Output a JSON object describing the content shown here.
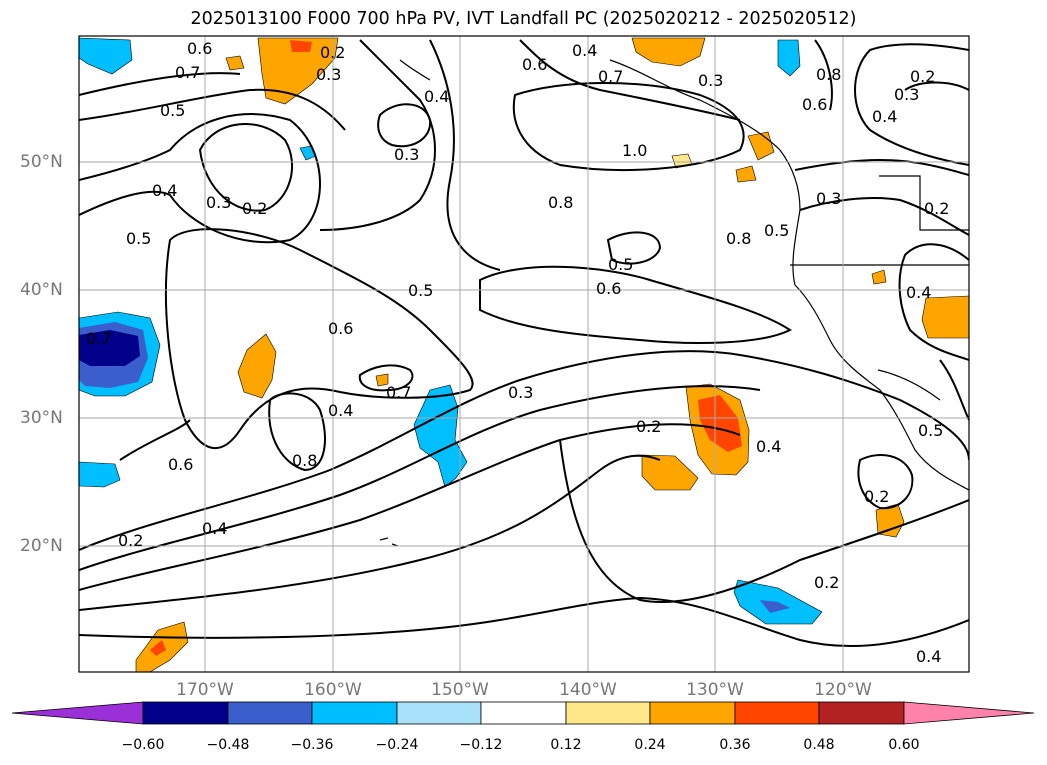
{
  "title": "2025013100 F000 700 hPa PV, IVT Landfall PC (2025020212 - 2025020512)",
  "lat_labels": [
    "50°N",
    "40°N",
    "30°N",
    "20°N"
  ],
  "lon_labels": [
    "170°W",
    "160°W",
    "150°W",
    "140°W",
    "130°W",
    "120°W"
  ],
  "contour_labels": [
    "0.6",
    "0.7",
    "0.2",
    "0.3",
    "0.4",
    "0.6",
    "0.4",
    "0.7",
    "0.3",
    "0.2",
    "0.8",
    "0.3",
    "0.5",
    "0.3",
    "1.0",
    "0.6",
    "0.4",
    "0.4",
    "0.3",
    "0.2",
    "0.5",
    "0.8",
    "0.5",
    "0.8",
    "0.3",
    "0.2",
    "0.5",
    "0.5",
    "0.6",
    "0.4",
    "0.6",
    "0.7",
    "0.7",
    "0.3",
    "0.4",
    "0.8",
    "0.2",
    "0.4",
    "0.6",
    "0.4",
    "0.2",
    "0.2",
    "0.2",
    "0.4",
    "0.5"
  ],
  "colorbar": {
    "tick_labels": [
      "−0.60",
      "−0.48",
      "−0.36",
      "−0.24",
      "−0.12",
      "0.12",
      "0.24",
      "0.36",
      "0.48",
      "0.60"
    ],
    "colors": [
      "#9b30d9",
      "#00008b",
      "#3a5fcd",
      "#00bfff",
      "#aae1fa",
      "#ffffff",
      "#ffe88a",
      "#ffa500",
      "#ff4500",
      "#b22222",
      "#ff82ab"
    ]
  }
}
